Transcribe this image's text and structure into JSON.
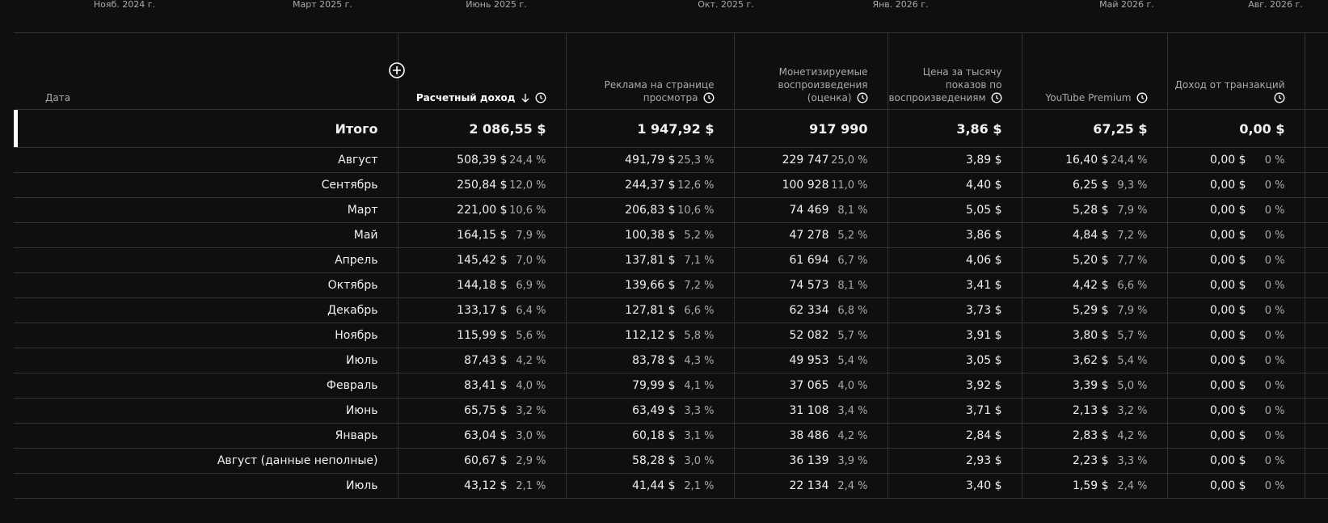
{
  "timeline": [
    "Нояб. 2024 г.",
    "Март 2025 г.",
    "Июнь 2025 г.",
    "Окт. 2025 г.",
    "Янв. 2026 г.",
    "Май 2026 г.",
    "Авг. 2026 г."
  ],
  "table": {
    "columns": [
      "Дата",
      "Расчетный доход",
      "Реклама на странице просмотра",
      "Монетизируемые воспроизведения (оценка)",
      "Цена за тысячу показов по воспроизведениям",
      "YouTube Premium",
      "Доход от транзакций"
    ],
    "total": {
      "label": "Итого",
      "cells": [
        "2 086,55 $",
        "1 947,92 $",
        "917 990",
        "3,86 $",
        "67,25 $",
        "0,00 $"
      ]
    },
    "rows": [
      {
        "label": "Август",
        "cells": [
          [
            "508,39 $",
            "24,4 %"
          ],
          [
            "491,79 $",
            "25,3 %"
          ],
          [
            "229 747",
            "25,0 %"
          ],
          [
            "3,89 $"
          ],
          [
            "16,40 $",
            "24,4 %"
          ],
          [
            "0,00 $",
            "0 %"
          ]
        ]
      },
      {
        "label": "Сентябрь",
        "cells": [
          [
            "250,84 $",
            "12,0 %"
          ],
          [
            "244,37 $",
            "12,6 %"
          ],
          [
            "100 928",
            "11,0 %"
          ],
          [
            "4,40 $"
          ],
          [
            "6,25 $",
            "9,3 %"
          ],
          [
            "0,00 $",
            "0 %"
          ]
        ]
      },
      {
        "label": "Март",
        "cells": [
          [
            "221,00 $",
            "10,6 %"
          ],
          [
            "206,83 $",
            "10,6 %"
          ],
          [
            "74 469",
            "8,1 %"
          ],
          [
            "5,05 $"
          ],
          [
            "5,28 $",
            "7,9 %"
          ],
          [
            "0,00 $",
            "0 %"
          ]
        ]
      },
      {
        "label": "Май",
        "cells": [
          [
            "164,15 $",
            "7,9 %"
          ],
          [
            "100,38 $",
            "5,2 %"
          ],
          [
            "47 278",
            "5,2 %"
          ],
          [
            "3,86 $"
          ],
          [
            "4,84 $",
            "7,2 %"
          ],
          [
            "0,00 $",
            "0 %"
          ]
        ]
      },
      {
        "label": "Апрель",
        "cells": [
          [
            "145,42 $",
            "7,0 %"
          ],
          [
            "137,81 $",
            "7,1 %"
          ],
          [
            "61 694",
            "6,7 %"
          ],
          [
            "4,06 $"
          ],
          [
            "5,20 $",
            "7,7 %"
          ],
          [
            "0,00 $",
            "0 %"
          ]
        ]
      },
      {
        "label": "Октябрь",
        "cells": [
          [
            "144,18 $",
            "6,9 %"
          ],
          [
            "139,66 $",
            "7,2 %"
          ],
          [
            "74 573",
            "8,1 %"
          ],
          [
            "3,41 $"
          ],
          [
            "4,42 $",
            "6,6 %"
          ],
          [
            "0,00 $",
            "0 %"
          ]
        ]
      },
      {
        "label": "Декабрь",
        "cells": [
          [
            "133,17 $",
            "6,4 %"
          ],
          [
            "127,81 $",
            "6,6 %"
          ],
          [
            "62 334",
            "6,8 %"
          ],
          [
            "3,73 $"
          ],
          [
            "5,29 $",
            "7,9 %"
          ],
          [
            "0,00 $",
            "0 %"
          ]
        ]
      },
      {
        "label": "Ноябрь",
        "cells": [
          [
            "115,99 $",
            "5,6 %"
          ],
          [
            "112,12 $",
            "5,8 %"
          ],
          [
            "52 082",
            "5,7 %"
          ],
          [
            "3,91 $"
          ],
          [
            "3,80 $",
            "5,7 %"
          ],
          [
            "0,00 $",
            "0 %"
          ]
        ]
      },
      {
        "label": "Июль",
        "cells": [
          [
            "87,43 $",
            "4,2 %"
          ],
          [
            "83,78 $",
            "4,3 %"
          ],
          [
            "49 953",
            "5,4 %"
          ],
          [
            "3,05 $"
          ],
          [
            "3,62 $",
            "5,4 %"
          ],
          [
            "0,00 $",
            "0 %"
          ]
        ]
      },
      {
        "label": "Февраль",
        "cells": [
          [
            "83,41 $",
            "4,0 %"
          ],
          [
            "79,99 $",
            "4,1 %"
          ],
          [
            "37 065",
            "4,0 %"
          ],
          [
            "3,92 $"
          ],
          [
            "3,39 $",
            "5,0 %"
          ],
          [
            "0,00 $",
            "0 %"
          ]
        ]
      },
      {
        "label": "Июнь",
        "cells": [
          [
            "65,75 $",
            "3,2 %"
          ],
          [
            "63,49 $",
            "3,3 %"
          ],
          [
            "31 108",
            "3,4 %"
          ],
          [
            "3,71 $"
          ],
          [
            "2,13 $",
            "3,2 %"
          ],
          [
            "0,00 $",
            "0 %"
          ]
        ]
      },
      {
        "label": "Январь",
        "cells": [
          [
            "63,04 $",
            "3,0 %"
          ],
          [
            "60,18 $",
            "3,1 %"
          ],
          [
            "38 486",
            "4,2 %"
          ],
          [
            "2,84 $"
          ],
          [
            "2,83 $",
            "4,2 %"
          ],
          [
            "0,00 $",
            "0 %"
          ]
        ]
      },
      {
        "label": "Август (данные неполные)",
        "cells": [
          [
            "60,67 $",
            "2,9 %"
          ],
          [
            "58,28 $",
            "3,0 %"
          ],
          [
            "36 139",
            "3,9 %"
          ],
          [
            "2,93 $"
          ],
          [
            "2,23 $",
            "3,3 %"
          ],
          [
            "0,00 $",
            "0 %"
          ]
        ]
      },
      {
        "label": "Июль",
        "cells": [
          [
            "43,12 $",
            "2,1 %"
          ],
          [
            "41,44 $",
            "2,1 %"
          ],
          [
            "22 134",
            "2,4 %"
          ],
          [
            "3,40 $"
          ],
          [
            "1,59 $",
            "2,4 %"
          ],
          [
            "0,00 $",
            "0 %"
          ]
        ]
      }
    ]
  }
}
